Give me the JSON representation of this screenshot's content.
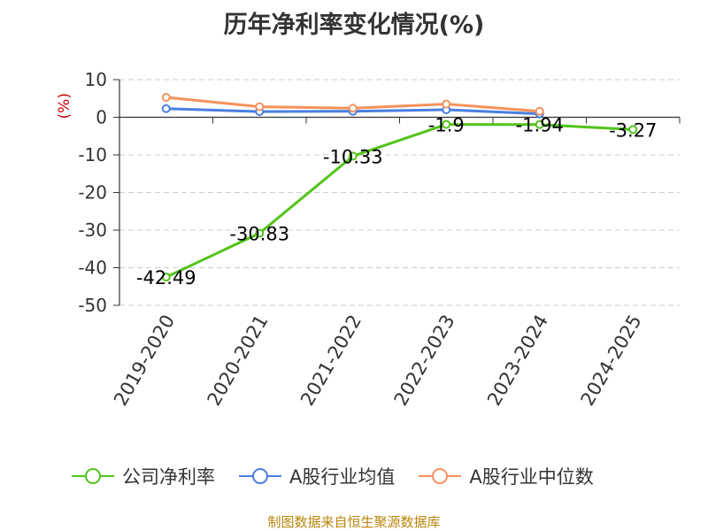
{
  "title": "历年净利率变化情况(%)",
  "footer": "制图数据来自恒生聚源数据库",
  "chart_data": {
    "type": "line",
    "title": "历年净利率变化情况(%)",
    "ylabel": "(%)",
    "ylim": [
      -50,
      10
    ],
    "yticks": [
      10,
      0,
      -10,
      -20,
      -30,
      -40,
      -50
    ],
    "grid": true,
    "legend_position": "bottom",
    "categories": [
      "2019-2020",
      "2020-2021",
      "2021-2022",
      "2022-2023",
      "2023-2024",
      "2024-2025"
    ],
    "series": [
      {
        "name": "公司净利率",
        "color": "#52c41a",
        "values": [
          -42.49,
          -30.83,
          -10.33,
          -1.9,
          -1.94,
          -3.27
        ],
        "labels": [
          "-42.49",
          "-30.83",
          "-10.33",
          "-1.9",
          "-1.94",
          "-3.27"
        ]
      },
      {
        "name": "A股行业均值",
        "color": "#4a7fe0",
        "values": [
          2.3,
          1.5,
          1.6,
          2.0,
          0.9,
          null
        ]
      },
      {
        "name": "A股行业中位数",
        "color": "#f4925c",
        "values": [
          5.3,
          2.8,
          2.4,
          3.5,
          1.6,
          null
        ]
      }
    ]
  }
}
